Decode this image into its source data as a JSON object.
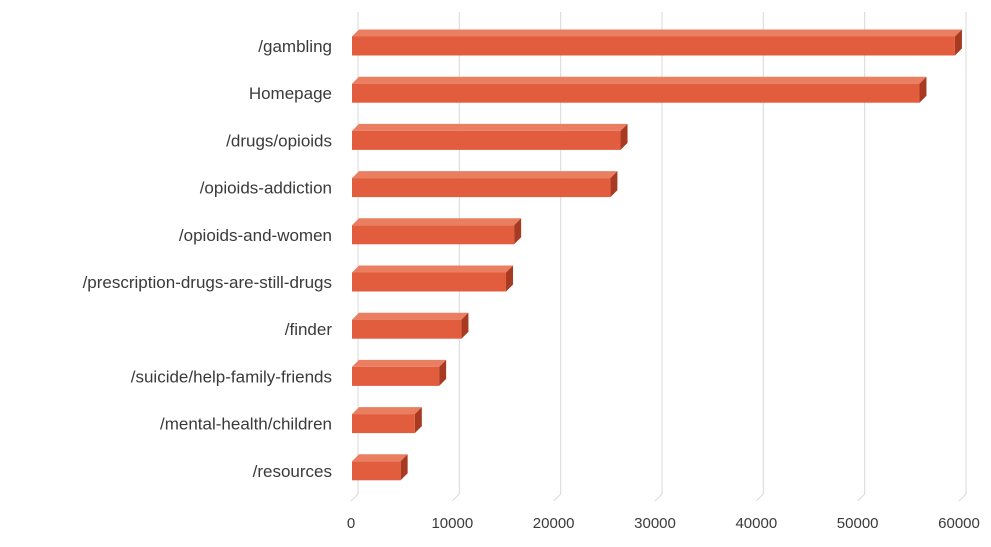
{
  "chart_data": {
    "type": "bar",
    "orientation": "horizontal",
    "style": "3d",
    "categories": [
      "/gambling",
      "Homepage",
      "/drugs/opioids",
      "/opioids-addiction",
      "/opioids-and-women",
      "/prescription-drugs-are-still-drugs",
      "/finder",
      "/suicide/help-family-friends",
      "/mental-health/children",
      "/resources"
    ],
    "values": [
      59500,
      56000,
      26500,
      25500,
      16000,
      15200,
      10800,
      8600,
      6200,
      4800
    ],
    "title": "",
    "xlabel": "",
    "ylabel": "",
    "xlim": [
      0,
      60000
    ],
    "x_ticks": [
      "0",
      "10000",
      "20000",
      "30000",
      "40000",
      "50000",
      "60000"
    ],
    "grid": true,
    "legend": "none",
    "colors": {
      "bar_front": "#e15d3d",
      "bar_top": "#ea7e60",
      "bar_side": "#a73a21",
      "grid": "#d9d9d9",
      "text": "#3a3a3a"
    }
  }
}
